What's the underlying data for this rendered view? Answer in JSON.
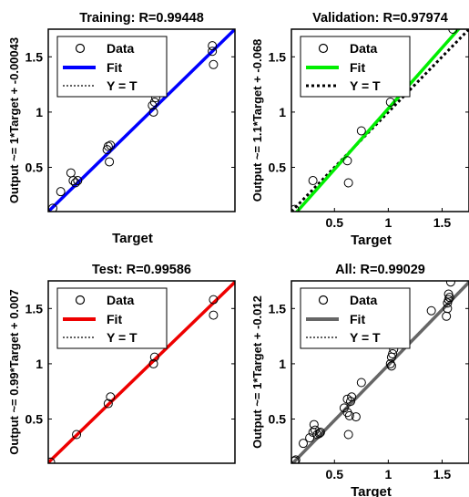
{
  "chart_data": [
    {
      "type": "scatter",
      "title": "Training: R=0.99448",
      "xlabel": "Target",
      "ylabel": "Output ~= 1*Target + -0.00043",
      "xlim": [
        0.1,
        1.75
      ],
      "ylim": [
        0.1,
        1.75
      ],
      "xticks": [],
      "yticks": [
        "0.5",
        "1",
        "1.5"
      ],
      "grid": false,
      "legend_position": "top-left",
      "fit_color": "#0000ff",
      "fit": {
        "slope": 1.0,
        "intercept": -0.00043
      },
      "legend": [
        "Data",
        "Fit",
        "Y = T"
      ],
      "points": [
        [
          0.14,
          0.13
        ],
        [
          0.21,
          0.28
        ],
        [
          0.3,
          0.45
        ],
        [
          0.32,
          0.38
        ],
        [
          0.34,
          0.36
        ],
        [
          0.36,
          0.38
        ],
        [
          0.62,
          0.66
        ],
        [
          0.63,
          0.69
        ],
        [
          0.64,
          0.55
        ],
        [
          0.65,
          0.7
        ],
        [
          1.02,
          1.06
        ],
        [
          1.03,
          1.0
        ],
        [
          1.04,
          1.09
        ],
        [
          1.05,
          1.13
        ],
        [
          1.55,
          1.6
        ],
        [
          1.55,
          1.55
        ],
        [
          1.56,
          1.43
        ]
      ]
    },
    {
      "type": "scatter",
      "title": "Validation: R=0.97974",
      "xlabel": "Target",
      "ylabel": "Output ~= 1.1*Target + -0.068",
      "xlim": [
        0.1,
        1.75
      ],
      "ylim": [
        0.1,
        1.75
      ],
      "xticks": [
        "0.5",
        "1",
        "1.5"
      ],
      "yticks": [
        "0.5",
        "1",
        "1.5"
      ],
      "grid": false,
      "legend_position": "top-left",
      "fit_color": "#00ee00",
      "fit": {
        "slope": 1.1,
        "intercept": -0.068
      },
      "legend": [
        "Data",
        "Fit",
        "Y = T"
      ],
      "points": [
        [
          0.13,
          0.12
        ],
        [
          0.3,
          0.38
        ],
        [
          0.62,
          0.56
        ],
        [
          0.63,
          0.36
        ],
        [
          0.75,
          0.83
        ],
        [
          1.02,
          1.09
        ],
        [
          1.6,
          1.75
        ]
      ]
    },
    {
      "type": "scatter",
      "title": "Test: R=0.99586",
      "xlabel": "",
      "ylabel": "Output ~= 0.99*Target + 0.007",
      "xlim": [
        0.1,
        1.75
      ],
      "ylim": [
        0.1,
        1.75
      ],
      "xticks": [],
      "yticks": [
        "0.5",
        "1",
        "1.5"
      ],
      "grid": false,
      "legend_position": "top-left",
      "fit_color": "#ee0000",
      "fit": {
        "slope": 0.99,
        "intercept": 0.007
      },
      "legend": [
        "Data",
        "Fit",
        "Y = T"
      ],
      "points": [
        [
          0.12,
          0.11
        ],
        [
          0.35,
          0.36
        ],
        [
          0.63,
          0.64
        ],
        [
          0.65,
          0.7
        ],
        [
          1.03,
          1.0
        ],
        [
          1.04,
          1.06
        ],
        [
          1.56,
          1.44
        ],
        [
          1.56,
          1.58
        ]
      ]
    },
    {
      "type": "scatter",
      "title": "All: R=0.99029",
      "xlabel": "Target",
      "ylabel": "Output ~= 1*Target + -0.012",
      "xlim": [
        0.1,
        1.75
      ],
      "ylim": [
        0.1,
        1.75
      ],
      "xticks": [
        "0.5",
        "1",
        "1.5"
      ],
      "yticks": [
        "0.5",
        "1",
        "1.5"
      ],
      "grid": false,
      "legend_position": "top-left",
      "fit_color": "#666666",
      "fit": {
        "slope": 1.0,
        "intercept": -0.012
      },
      "legend": [
        "Data",
        "Fit",
        "Y = T"
      ],
      "points": [
        [
          0.13,
          0.12
        ],
        [
          0.14,
          0.13
        ],
        [
          0.21,
          0.28
        ],
        [
          0.27,
          0.33
        ],
        [
          0.3,
          0.38
        ],
        [
          0.31,
          0.45
        ],
        [
          0.32,
          0.4
        ],
        [
          0.34,
          0.36
        ],
        [
          0.36,
          0.37
        ],
        [
          0.37,
          0.38
        ],
        [
          0.59,
          0.6
        ],
        [
          0.62,
          0.56
        ],
        [
          0.62,
          0.68
        ],
        [
          0.63,
          0.36
        ],
        [
          0.64,
          0.53
        ],
        [
          0.65,
          0.66
        ],
        [
          0.66,
          0.7
        ],
        [
          0.7,
          0.52
        ],
        [
          0.75,
          0.83
        ],
        [
          1.02,
          1.0
        ],
        [
          1.03,
          1.06
        ],
        [
          1.04,
          1.09
        ],
        [
          1.05,
          1.13
        ],
        [
          1.03,
          0.98
        ],
        [
          1.4,
          1.48
        ],
        [
          1.54,
          1.43
        ],
        [
          1.55,
          1.5
        ],
        [
          1.55,
          1.55
        ],
        [
          1.56,
          1.58
        ],
        [
          1.57,
          1.6
        ],
        [
          1.56,
          1.63
        ],
        [
          1.58,
          1.74
        ]
      ]
    }
  ]
}
